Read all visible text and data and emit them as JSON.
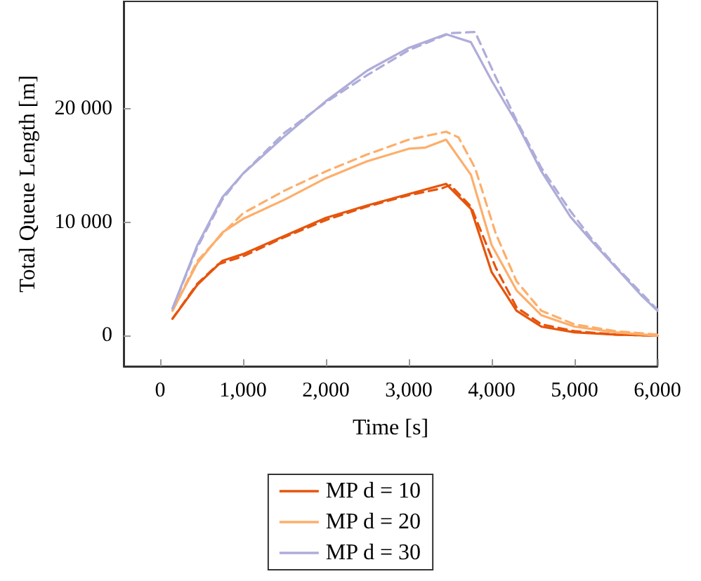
{
  "chart_data": {
    "type": "line",
    "xlabel": "Time [s]",
    "ylabel": "Total Queue Length [m]",
    "xlim": [
      -440,
      6000
    ],
    "ylim": [
      -2700,
      29500
    ],
    "xticks": [
      {
        "value": 0,
        "label": "0"
      },
      {
        "value": 1000,
        "label": "1,000"
      },
      {
        "value": 2000,
        "label": "2,000"
      },
      {
        "value": 3000,
        "label": "3,000"
      },
      {
        "value": 4000,
        "label": "4,000"
      },
      {
        "value": 5000,
        "label": "5,000"
      },
      {
        "value": 6000,
        "label": "6,000"
      }
    ],
    "yticks": [
      0,
      {
        "value": 10000,
        "label": "10 000"
      },
      {
        "value": 20000,
        "label": "20 000"
      }
    ],
    "grid": false,
    "legend": "bottom",
    "marker": "none",
    "series": [
      {
        "name": "MP d = 10",
        "color": "#e6550d",
        "line_style": "solid",
        "x": [
          150,
          450,
          750,
          1000,
          1500,
          2000,
          2500,
          3000,
          3450,
          3750,
          4000,
          4300,
          4600,
          5000,
          5500,
          6000
        ],
        "values": [
          1500,
          4500,
          6600,
          7200,
          8800,
          10400,
          11500,
          12500,
          13400,
          11200,
          5600,
          2200,
          800,
          300,
          100,
          0
        ]
      },
      {
        "color": "#e6550d",
        "line_style": "dashed",
        "x": [
          150,
          450,
          700,
          1000,
          1500,
          2000,
          2500,
          3000,
          3400,
          3500,
          3750,
          4050,
          4300,
          4600,
          5000,
          5500,
          6000
        ],
        "values": [
          1500,
          4600,
          6300,
          7000,
          8700,
          10200,
          11400,
          12400,
          13000,
          13300,
          11400,
          6000,
          2500,
          1000,
          400,
          100,
          0
        ]
      },
      {
        "name": "MP d = 20",
        "color": "#fdae6b",
        "line_style": "solid",
        "x": [
          150,
          450,
          750,
          1000,
          1500,
          2000,
          2500,
          3000,
          3200,
          3450,
          3750,
          4000,
          4300,
          4600,
          5000,
          5500,
          6000
        ],
        "values": [
          2200,
          6400,
          9100,
          10300,
          12000,
          13900,
          15400,
          16500,
          16600,
          17300,
          14200,
          8000,
          4000,
          1800,
          800,
          300,
          0
        ]
      },
      {
        "color": "#fdae6b",
        "line_style": "dashed",
        "x": [
          150,
          450,
          750,
          1000,
          1500,
          2000,
          2500,
          3000,
          3450,
          3600,
          3800,
          4050,
          4300,
          4600,
          5000,
          5500,
          6000
        ],
        "values": [
          2200,
          6600,
          9000,
          10800,
          12800,
          14500,
          16000,
          17300,
          18000,
          17500,
          14800,
          9000,
          4800,
          2200,
          1000,
          400,
          100
        ]
      },
      {
        "name": "MP d = 30",
        "color": "#aeacd9",
        "line_style": "solid",
        "x": [
          150,
          450,
          750,
          1000,
          1500,
          2000,
          2500,
          3000,
          3450,
          3750,
          4000,
          4300,
          4600,
          4950,
          5200,
          5500,
          5800,
          6000
        ],
        "values": [
          2400,
          8000,
          12200,
          14300,
          17600,
          20700,
          23400,
          25400,
          26600,
          25900,
          22500,
          18800,
          14500,
          10500,
          8400,
          6000,
          3600,
          2200
        ]
      },
      {
        "color": "#aeacd9",
        "line_style": "dashed",
        "x": [
          150,
          450,
          750,
          1000,
          1500,
          2000,
          2500,
          3000,
          3500,
          3800,
          4050,
          4300,
          4600,
          4950,
          5200,
          5500,
          5800,
          6000
        ],
        "values": [
          2400,
          7800,
          12000,
          14300,
          17900,
          20600,
          23000,
          25200,
          26700,
          26800,
          22800,
          19000,
          14800,
          11000,
          8600,
          6100,
          3800,
          2300
        ]
      }
    ]
  }
}
